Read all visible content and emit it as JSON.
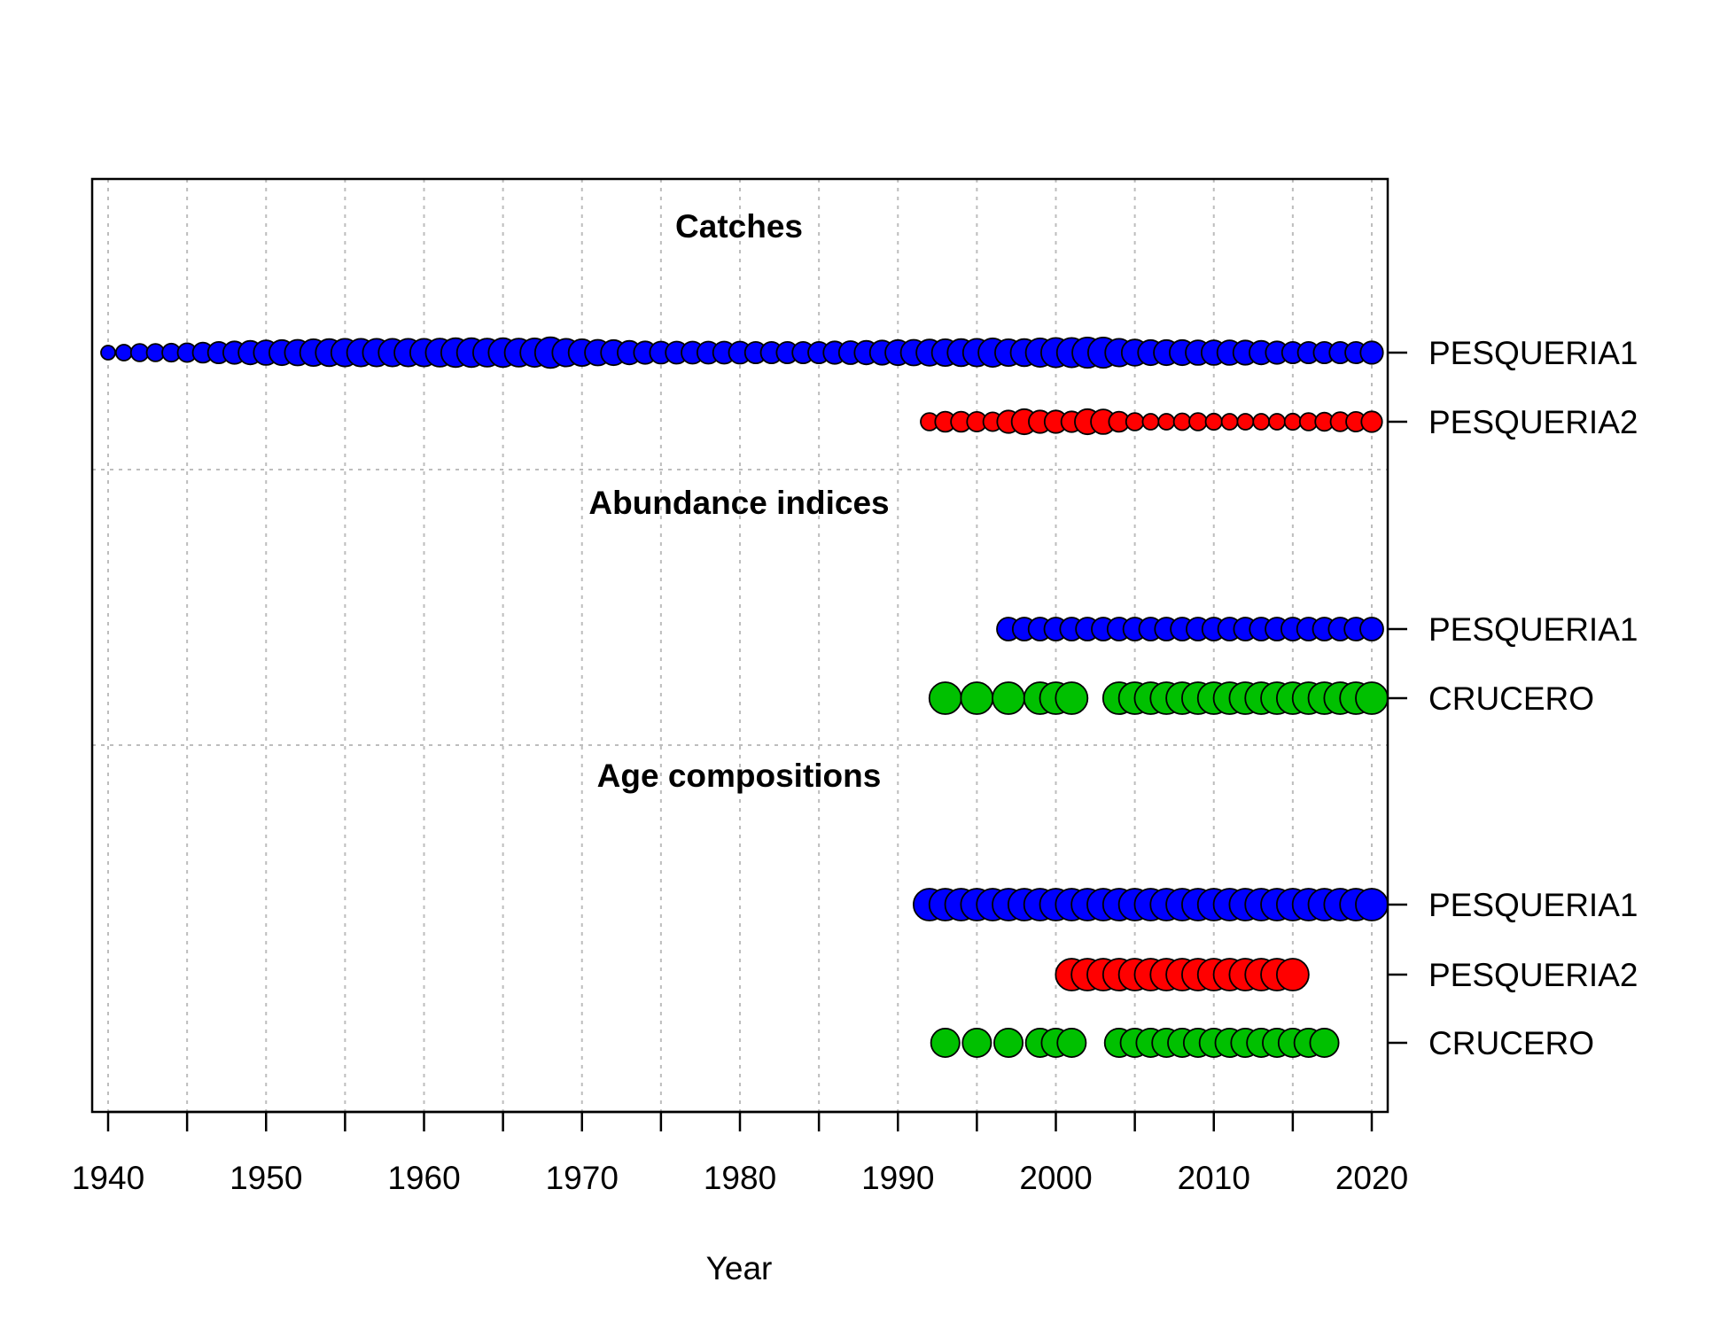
{
  "chart_data": {
    "type": "scatter",
    "xlabel": "Year",
    "xlim": [
      1939,
      2021
    ],
    "x_ticks": [
      1940,
      1950,
      1960,
      1970,
      1980,
      1990,
      2000,
      2010,
      2020
    ],
    "grid": true,
    "sections": [
      {
        "title": "Catches",
        "rows": [
          {
            "label": "PESQUERIA1",
            "color": "#0000ff",
            "years": [
              1940,
              1941,
              1942,
              1943,
              1944,
              1945,
              1946,
              1947,
              1948,
              1949,
              1950,
              1951,
              1952,
              1953,
              1954,
              1955,
              1956,
              1957,
              1958,
              1959,
              1960,
              1961,
              1962,
              1963,
              1964,
              1965,
              1966,
              1967,
              1968,
              1969,
              1970,
              1971,
              1972,
              1973,
              1974,
              1975,
              1976,
              1977,
              1978,
              1979,
              1980,
              1981,
              1982,
              1983,
              1984,
              1985,
              1986,
              1987,
              1988,
              1989,
              1990,
              1991,
              1992,
              1993,
              1994,
              1995,
              1996,
              1997,
              1998,
              1999,
              2000,
              2001,
              2002,
              2003,
              2004,
              2005,
              2006,
              2007,
              2008,
              2009,
              2010,
              2011,
              2012,
              2013,
              2014,
              2015,
              2016,
              2017,
              2018,
              2019,
              2020
            ],
            "sizes": [
              0.2,
              0.25,
              0.3,
              0.3,
              0.32,
              0.35,
              0.4,
              0.45,
              0.5,
              0.55,
              0.6,
              0.62,
              0.65,
              0.7,
              0.72,
              0.75,
              0.75,
              0.75,
              0.75,
              0.75,
              0.75,
              0.78,
              0.82,
              0.82,
              0.78,
              0.82,
              0.78,
              0.8,
              0.92,
              0.75,
              0.7,
              0.65,
              0.62,
              0.55,
              0.5,
              0.48,
              0.48,
              0.48,
              0.48,
              0.48,
              0.48,
              0.45,
              0.45,
              0.45,
              0.45,
              0.45,
              0.5,
              0.52,
              0.55,
              0.58,
              0.62,
              0.65,
              0.68,
              0.7,
              0.72,
              0.75,
              0.8,
              0.7,
              0.72,
              0.8,
              0.85,
              0.85,
              0.9,
              0.9,
              0.75,
              0.68,
              0.62,
              0.62,
              0.62,
              0.6,
              0.6,
              0.6,
              0.58,
              0.55,
              0.5,
              0.45,
              0.45,
              0.45,
              0.45,
              0.45,
              0.5
            ]
          },
          {
            "label": "PESQUERIA2",
            "color": "#ff0000",
            "years": [
              1992,
              1993,
              1994,
              1995,
              1996,
              1997,
              1998,
              1999,
              2000,
              2001,
              2002,
              2003,
              2004,
              2005,
              2006,
              2007,
              2008,
              2009,
              2010,
              2011,
              2012,
              2013,
              2014,
              2015,
              2016,
              2017,
              2018,
              2019,
              2020
            ],
            "sizes": [
              0.3,
              0.4,
              0.4,
              0.38,
              0.35,
              0.5,
              0.62,
              0.5,
              0.5,
              0.42,
              0.62,
              0.6,
              0.4,
              0.3,
              0.25,
              0.25,
              0.28,
              0.3,
              0.26,
              0.25,
              0.25,
              0.25,
              0.25,
              0.26,
              0.3,
              0.33,
              0.36,
              0.38,
              0.42
            ]
          }
        ]
      },
      {
        "title": "Abundance indices",
        "rows": [
          {
            "label": "PESQUERIA1",
            "color": "#0000ff",
            "years": [
              1997,
              1998,
              1999,
              2000,
              2001,
              2002,
              2003,
              2004,
              2005,
              2006,
              2007,
              2008,
              2009,
              2010,
              2011,
              2012,
              2013,
              2014,
              2015,
              2016,
              2017,
              2018,
              2019,
              2020
            ],
            "sizes": [
              0.52,
              0.52,
              0.52,
              0.52,
              0.52,
              0.52,
              0.52,
              0.52,
              0.52,
              0.52,
              0.52,
              0.52,
              0.52,
              0.52,
              0.52,
              0.52,
              0.52,
              0.52,
              0.52,
              0.52,
              0.52,
              0.52,
              0.52,
              0.52
            ]
          },
          {
            "label": "CRUCERO",
            "color": "#00c000",
            "years": [
              1993,
              1995,
              1997,
              1999,
              2000,
              2001,
              2004,
              2005,
              2006,
              2007,
              2008,
              2009,
              2010,
              2011,
              2012,
              2013,
              2014,
              2015,
              2016,
              2017,
              2018,
              2019,
              2020
            ],
            "sizes": [
              1,
              1,
              1,
              1,
              1,
              1,
              1,
              1,
              1,
              1,
              1,
              1,
              1,
              1,
              1,
              1,
              1,
              1,
              1,
              1,
              1,
              1,
              1
            ]
          }
        ]
      },
      {
        "title": "Age compositions",
        "rows": [
          {
            "label": "PESQUERIA1",
            "color": "#0000ff",
            "years": [
              1992,
              1993,
              1994,
              1995,
              1996,
              1997,
              1998,
              1999,
              2000,
              2001,
              2002,
              2003,
              2004,
              2005,
              2006,
              2007,
              2008,
              2009,
              2010,
              2011,
              2012,
              2013,
              2014,
              2015,
              2016,
              2017,
              2018,
              2019,
              2020
            ],
            "sizes": [
              1,
              1,
              1,
              1,
              1,
              1,
              1,
              1,
              1,
              1,
              1,
              1,
              1,
              1,
              1,
              1,
              1,
              1,
              1,
              1,
              1,
              1,
              1,
              1,
              1,
              1,
              1,
              1,
              1
            ]
          },
          {
            "label": "PESQUERIA2",
            "color": "#ff0000",
            "years": [
              2001,
              2002,
              2003,
              2004,
              2005,
              2006,
              2007,
              2008,
              2009,
              2010,
              2011,
              2012,
              2013,
              2014,
              2015
            ],
            "sizes": [
              1,
              1,
              1,
              1,
              1,
              1,
              1,
              1,
              1,
              1,
              1,
              1,
              1,
              1,
              1
            ]
          },
          {
            "label": "CRUCERO",
            "color": "#00c000",
            "years": [
              1993,
              1995,
              1997,
              1999,
              2000,
              2001,
              2004,
              2005,
              2006,
              2007,
              2008,
              2009,
              2010,
              2011,
              2012,
              2013,
              2014,
              2015,
              2016,
              2017
            ],
            "sizes": [
              0.8,
              0.8,
              0.8,
              0.8,
              0.8,
              0.8,
              0.8,
              0.8,
              0.8,
              0.8,
              0.8,
              0.8,
              0.8,
              0.8,
              0.8,
              0.8,
              0.8,
              0.8,
              0.8,
              0.8
            ]
          }
        ]
      }
    ]
  }
}
